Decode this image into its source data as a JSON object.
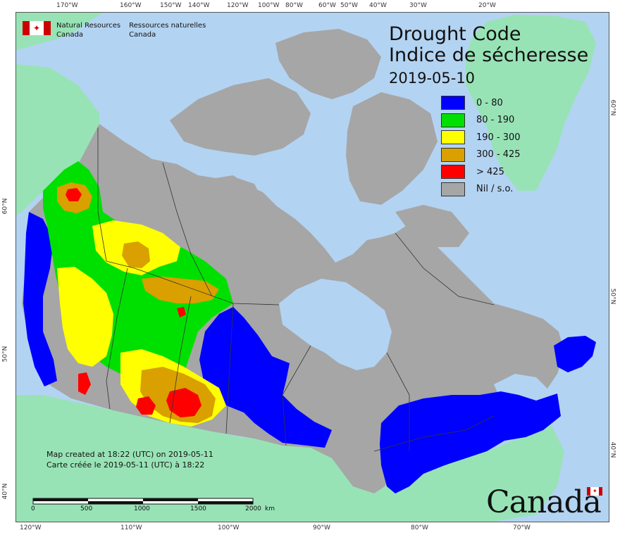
{
  "title": {
    "en": "Drought Code",
    "fr": "Indice de sécheresse",
    "date": "2019-05-10"
  },
  "legend": [
    {
      "label": "0 - 80",
      "color": "#0000ff"
    },
    {
      "label": "80 - 190",
      "color": "#00e000"
    },
    {
      "label": "190 - 300",
      "color": "#ffff00"
    },
    {
      "label": "300 - 425",
      "color": "#d9a000"
    },
    {
      "label": "> 425",
      "color": "#ff0000"
    },
    {
      "label": "Nil / s.o.",
      "color": "#a6a6a6"
    }
  ],
  "organization": {
    "en_line1": "Natural Resources",
    "en_line2": "Canada",
    "fr_line1": "Ressources naturelles",
    "fr_line2": "Canada"
  },
  "credits": {
    "en": "Map created at 18:22 (UTC) on 2019-05-11",
    "fr": "Carte créée le 2019-05-11 (UTC) à 18:22"
  },
  "scale": {
    "labels": [
      "0",
      "500",
      "1000",
      "1500",
      "2000"
    ],
    "unit": "km"
  },
  "top_ticks": [
    "170°W",
    "160°W",
    "150°W",
    "140°W",
    "120°W",
    "100°W",
    "80°W",
    "60°W",
    "50°W",
    "40°W",
    "30°W",
    "20°W"
  ],
  "bottom_ticks": [
    "120°W",
    "110°W",
    "100°W",
    "90°W",
    "80°W",
    "70°W"
  ],
  "left_ticks": [
    "60°N",
    "50°N",
    "40°N"
  ],
  "right_ticks": [
    "60°N",
    "50°N",
    "40°N"
  ],
  "wordmark": "Canada",
  "colors": {
    "ocean": "#b3d3f2",
    "foreign_land": "#98e3b6",
    "nil": "#a6a6a6",
    "boundary": "#333333"
  }
}
